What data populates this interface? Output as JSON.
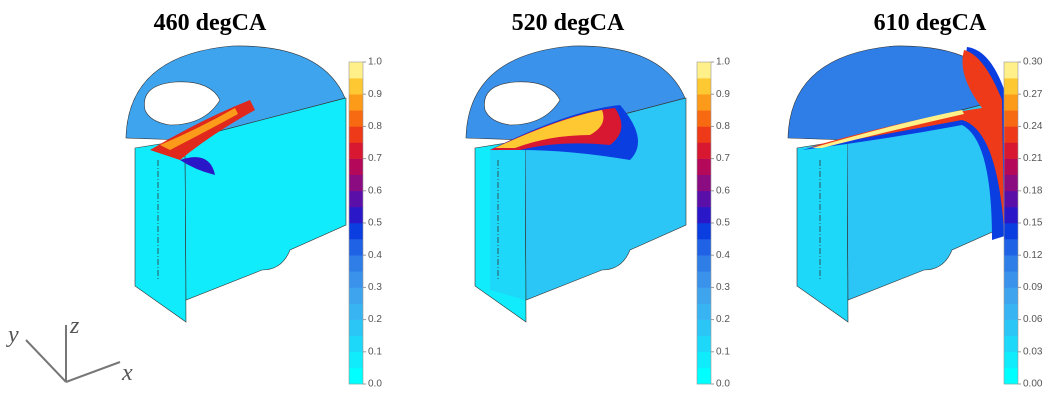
{
  "panels": [
    {
      "title": "460 degCA",
      "colorbar": {
        "ticks": [
          "0.0",
          "0.1",
          "0.2",
          "0.3",
          "0.4",
          "0.5",
          "0.6",
          "0.7",
          "0.8",
          "0.9",
          "1.0"
        ]
      }
    },
    {
      "title": "520 degCA",
      "colorbar": {
        "ticks": [
          "0.0",
          "0.1",
          "0.2",
          "0.3",
          "0.4",
          "0.5",
          "0.6",
          "0.7",
          "0.8",
          "0.9",
          "1.0"
        ]
      }
    },
    {
      "title": "610 degCA",
      "colorbar": {
        "ticks": [
          "0.00",
          "0.03",
          "0.06",
          "0.09",
          "0.12",
          "0.15",
          "0.18",
          "0.21",
          "0.24",
          "0.27",
          "0.30"
        ]
      }
    }
  ],
  "axes": {
    "x": "x",
    "y": "y",
    "z": "z"
  }
}
